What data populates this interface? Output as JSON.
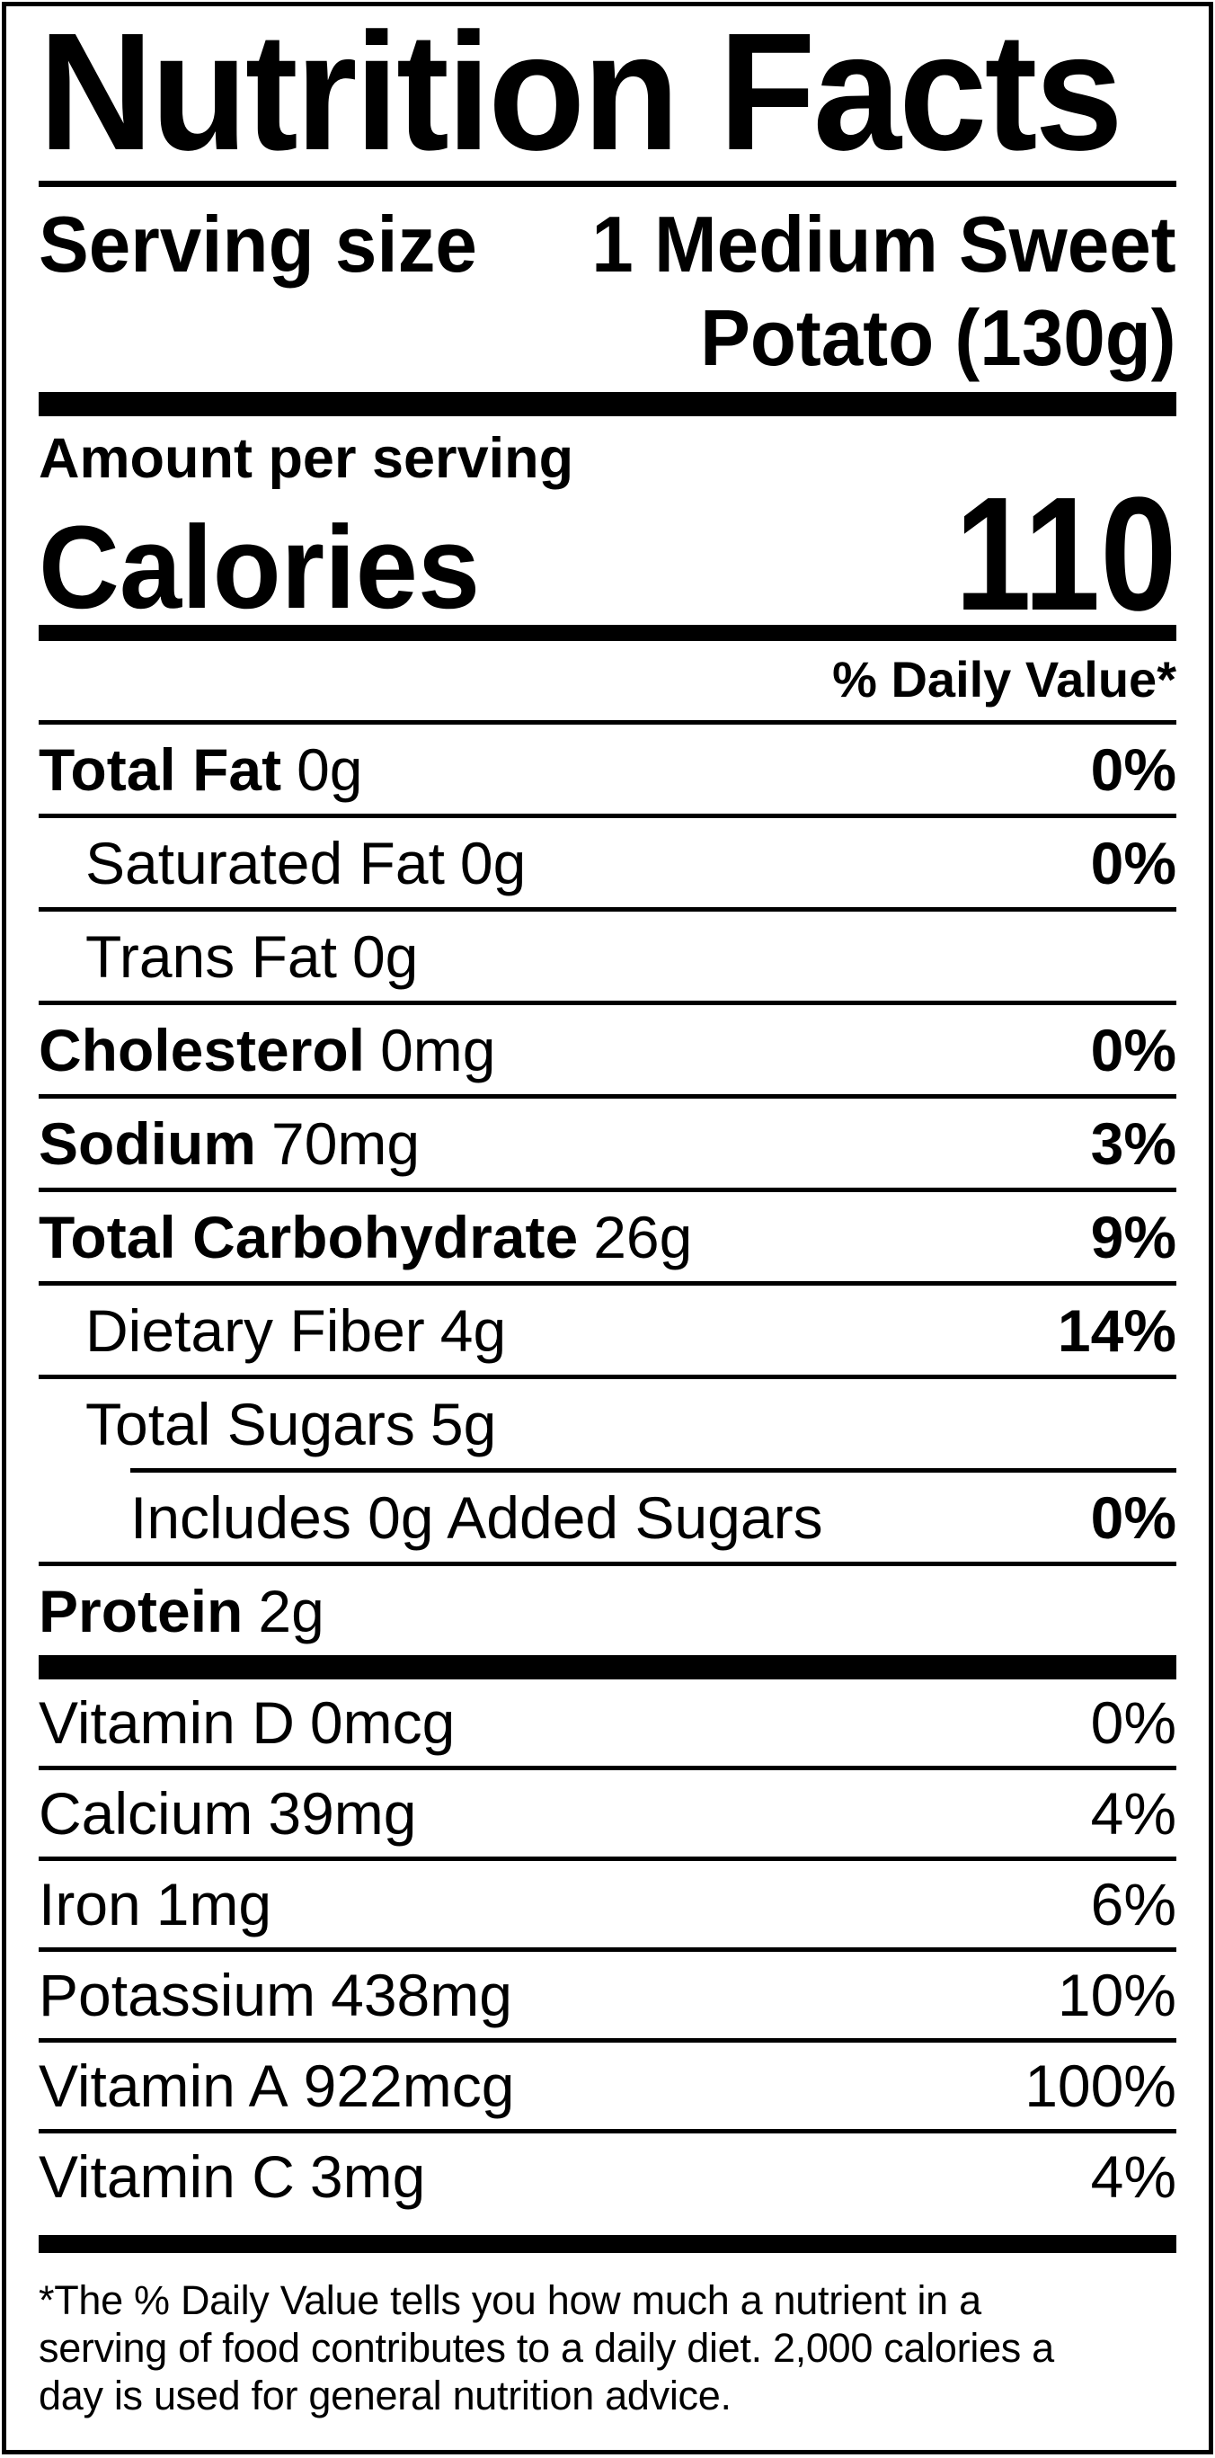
{
  "label": {
    "title": "Nutrition Facts",
    "serving": {
      "label": "Serving size",
      "value_line1": "1 Medium Sweet",
      "value_line2": "Potato (130g)"
    },
    "amount_per_serving": "Amount per serving",
    "calories_label": "Calories",
    "calories_value": "110",
    "daily_value_header": "% Daily Value*",
    "nutrients": [
      {
        "name": "Total Fat",
        "amount": "0g",
        "dv": "0%"
      },
      {
        "name": "Saturated Fat",
        "amount": "0g",
        "dv": "0%"
      },
      {
        "name": "Trans Fat",
        "amount": "0g",
        "dv": ""
      },
      {
        "name": "Cholesterol",
        "amount": "0mg",
        "dv": "0%"
      },
      {
        "name": "Sodium",
        "amount": "70mg",
        "dv": "3%"
      },
      {
        "name": "Total Carbohydrate",
        "amount": "26g",
        "dv": "9%"
      },
      {
        "name": "Dietary Fiber",
        "amount": "4g",
        "dv": "14%"
      },
      {
        "name": "Total Sugars",
        "amount": "5g",
        "dv": ""
      },
      {
        "name": "Includes 0g Added Sugars",
        "amount": "",
        "dv": "0%"
      },
      {
        "name": "Protein",
        "amount": "2g",
        "dv": ""
      }
    ],
    "vitamins": [
      {
        "name": "Vitamin D",
        "amount": "0mcg",
        "dv": "0%"
      },
      {
        "name": "Calcium",
        "amount": "39mg",
        "dv": "4%"
      },
      {
        "name": "Iron",
        "amount": "1mg",
        "dv": "6%"
      },
      {
        "name": "Potassium",
        "amount": "438mg",
        "dv": "10%"
      },
      {
        "name": "Vitamin A",
        "amount": "922mcg",
        "dv": "100%"
      },
      {
        "name": "Vitamin C",
        "amount": "3mg",
        "dv": "4%"
      }
    ],
    "footnote": {
      "line1": "*The % Daily Value tells you how much a nutrient in a",
      "line2": "serving of food contributes to a daily diet. 2,000 calories a",
      "line3": "day is used for general nutrition advice."
    }
  },
  "colors": {
    "text": "#000000",
    "background": "#ffffff",
    "border": "#000000"
  }
}
